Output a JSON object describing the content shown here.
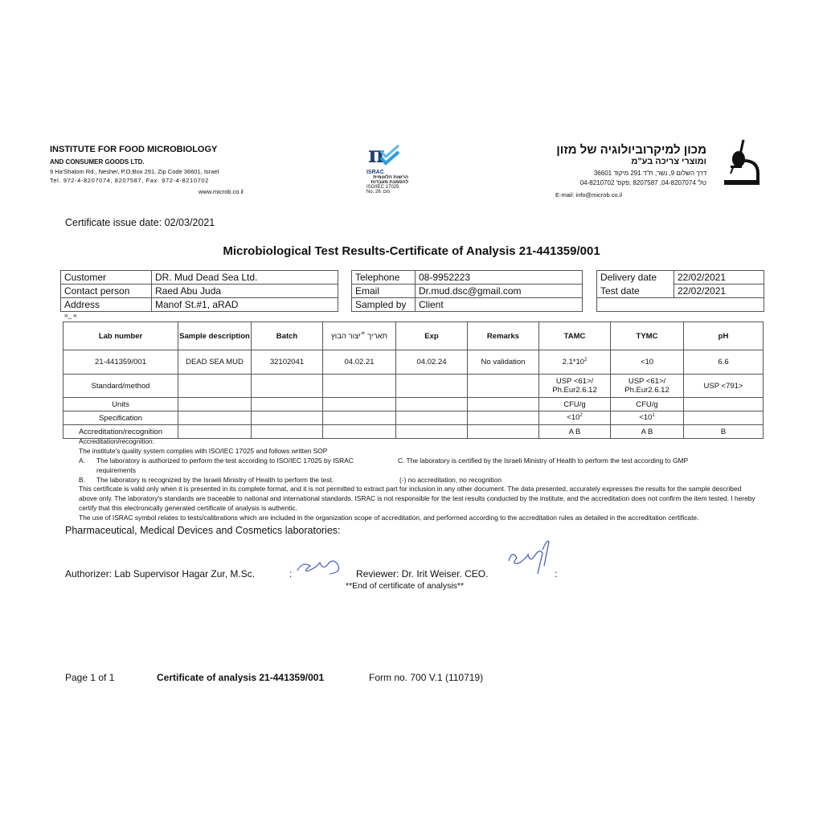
{
  "header": {
    "en_name": "INSTITUTE FOR FOOD MICROBIOLOGY",
    "en_sub": "AND CONSUMER GOODS LTD.",
    "en_address": "9 Ha'Shalom Rd., Nesher, P.O.Box 291, Zip Code 36601, Israel",
    "en_phone": "Tel. 972-4-8207074, 8207587, Fax. 972-4-8210702",
    "website": "www.microb.co.il",
    "israc_label": "ISRAC",
    "israc_he1": "הרשות הלאומית",
    "israc_he2": "להסמכת מעבדות",
    "israc_iso": "ISO/IEC 17025",
    "israc_no": "No.     26     .מס",
    "he_name": "מכון למיקרוביולוגיה של מזון",
    "he_sub": "ומוצרי צריכה בע\"מ",
    "he_address": "דרך השלום 9, נשר, ת\"ד 291 מיקוד 36601",
    "he_phone": "טל' 04-8207074, 8207587 ,פקס' 04-8210702",
    "email": "E-mail: info@microb.co.il",
    "brand_color": "#2a9fd8"
  },
  "issue_date": "Certificate issue date: 02/03/2021",
  "title": "Microbiological Test Results-Certificate of Analysis 21-441359/001",
  "info_left": [
    [
      "Customer",
      "DR. Mud Dead Sea Ltd."
    ],
    [
      "Contact person",
      "Raed Abu Juda"
    ],
    [
      "Address",
      "Manof St.#1, aRAD"
    ]
  ],
  "info_mid": [
    [
      "Telephone",
      "08-9952223"
    ],
    [
      "Email",
      "Dr.mud.dsc@gmail.com"
    ],
    [
      "Sampled by",
      "Client"
    ]
  ],
  "info_right": [
    [
      "Delivery date",
      "22/02/2021"
    ],
    [
      "Test date",
      "22/02/2021"
    ]
  ],
  "stray_marks": "»_          «",
  "results": {
    "headers": [
      "Lab number",
      "Sample description",
      "Batch",
      "תאריך ״יצור הבוץ",
      "Exp",
      "Remarks",
      "TAMC",
      "TYMC",
      "pH"
    ],
    "row": [
      "21-441359/001",
      "DEAD SEA MUD",
      "32102041",
      "04.02.21",
      "04.02.24",
      "No validation",
      "2.1*10",
      "<10",
      "6.6"
    ],
    "tamc_exp": "2",
    "standard": [
      "Standard/method",
      "USP <61>/ Ph.Eur2.6.12",
      "USP <61>/ Ph.Eur2.6.12",
      "USP <791>"
    ],
    "units": [
      "Units",
      "CFU/g",
      "CFU/g"
    ],
    "spec": [
      "Specification",
      "<10",
      "2",
      "<10",
      "1"
    ],
    "accr": [
      "Accreditation/recognition",
      "A B",
      "A B",
      "B"
    ]
  },
  "notes": {
    "title": "Accreditation/recognition:",
    "quality": "The institute's quality system complies with ISO/IEC 17025 and follows written SOP",
    "a_label": "A.",
    "a": "The laboratory is authorized to perform the test according to ISO/IEC 17025 by ISRAC requirements",
    "c": "C. The laboratory is certified by the Israeli Ministry of Health to perform the test according to GMP",
    "b_label": "B.",
    "b": "The laboratory is recognized by the Israeli Ministry of Health to perform the test.",
    "none": "(-) no accreditation, no recognition",
    "validity": "This certificate is valid only when it is presented in its complete format, and it is not permitted to extract part for inclusion in any other document. The data presented, accurately expresses the results for the sample described above only. The laboratory's standards are traceable to national and international standards. ISRAC is not responsible for the test results conducted by the institute, and the accreditation does not confirm the item tested. I hereby certify that this electronically generated certificate of analysis is authentic.",
    "israc_use": "The use of ISRAC symbol relates to tests/calibrations which are included in the organization scope of accreditation, and performed according to the accreditation rules as detailed in the accreditation certificate."
  },
  "labs": "Pharmaceutical, Medical Devices and Cosmetics laboratories:",
  "authorizer": "Authorizer: Lab Supervisor Hagar Zur, M.Sc.",
  "reviewer": "Reviewer: Dr. Irit Weiser. CEO.",
  "colon": ":",
  "end": "**End of certificate of analysis**",
  "footer": {
    "page": "Page 1 of  1",
    "cert": "Certificate of analysis 21-441359/001",
    "form": "Form no. 700 V.1 (110719)"
  }
}
